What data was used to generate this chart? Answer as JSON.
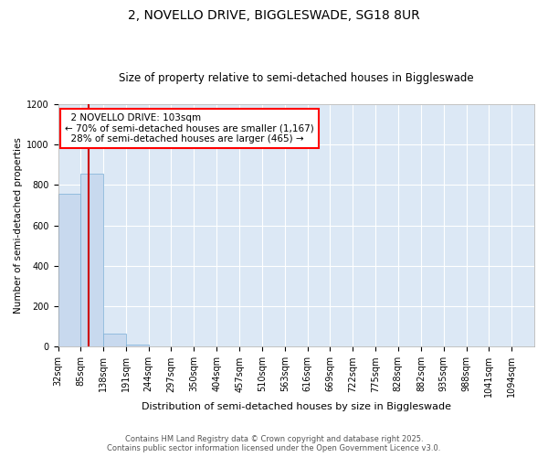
{
  "title": "2, NOVELLO DRIVE, BIGGLESWADE, SG18 8UR",
  "subtitle": "Size of property relative to semi-detached houses in Biggleswade",
  "xlabel": "Distribution of semi-detached houses by size in Biggleswade",
  "ylabel": "Number of semi-detached properties",
  "bin_labels": [
    "32sqm",
    "85sqm",
    "138sqm",
    "191sqm",
    "244sqm",
    "297sqm",
    "350sqm",
    "404sqm",
    "457sqm",
    "510sqm",
    "563sqm",
    "616sqm",
    "669sqm",
    "722sqm",
    "775sqm",
    "828sqm",
    "882sqm",
    "935sqm",
    "988sqm",
    "1041sqm",
    "1094sqm"
  ],
  "bar_values": [
    755,
    858,
    65,
    10,
    0,
    0,
    0,
    0,
    0,
    0,
    0,
    0,
    0,
    0,
    0,
    0,
    0,
    0,
    0,
    0
  ],
  "bar_color": "#c8d9ee",
  "bar_edge_color": "#7aaed6",
  "plot_bg_color": "#dce8f5",
  "property_size": 103,
  "property_label": "2 NOVELLO DRIVE: 103sqm",
  "percent_smaller": 70,
  "count_smaller": 1167,
  "percent_larger": 28,
  "count_larger": 465,
  "vline_color": "#cc0000",
  "ylim": [
    0,
    1200
  ],
  "yticks": [
    0,
    200,
    400,
    600,
    800,
    1000,
    1200
  ],
  "footer_line1": "Contains HM Land Registry data © Crown copyright and database right 2025.",
  "footer_line2": "Contains public sector information licensed under the Open Government Licence v3.0.",
  "bin_edges": [
    32,
    85,
    138,
    191,
    244,
    297,
    350,
    404,
    457,
    510,
    563,
    616,
    669,
    722,
    775,
    828,
    882,
    935,
    988,
    1041,
    1094
  ],
  "title_fontsize": 10,
  "subtitle_fontsize": 8.5,
  "tick_fontsize": 7,
  "ylabel_fontsize": 7.5,
  "xlabel_fontsize": 8,
  "footer_fontsize": 6,
  "annot_fontsize": 7.5
}
